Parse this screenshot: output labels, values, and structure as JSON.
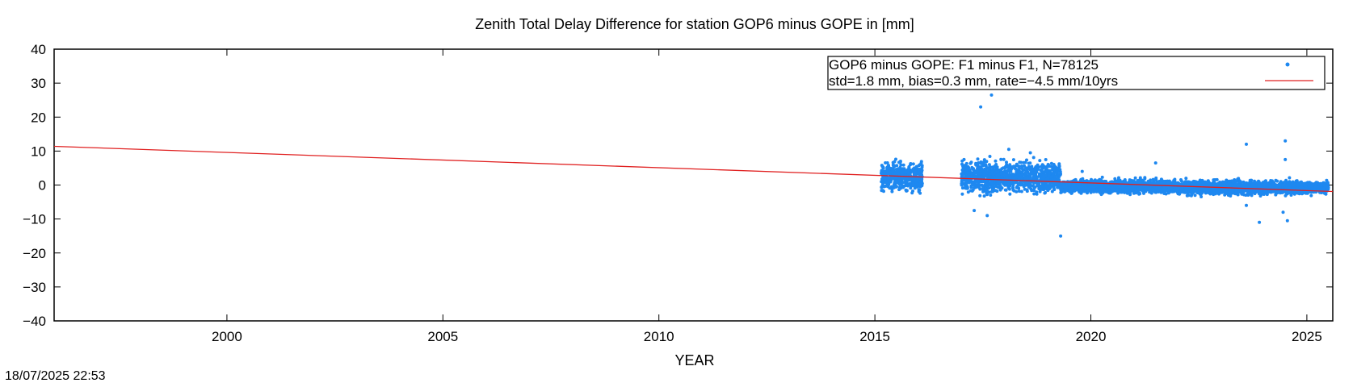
{
  "chart_data": {
    "type": "scatter",
    "title": "Zenith Total Delay Difference for station GOP6 minus GOPE in [mm]",
    "xlabel": "YEAR",
    "ylabel": "",
    "xlim": [
      1996.0,
      2025.6
    ],
    "ylim": [
      -40,
      40
    ],
    "xticks": [
      2000,
      2005,
      2010,
      2015,
      2020,
      2025
    ],
    "yticks": [
      -40,
      -30,
      -20,
      -10,
      0,
      10,
      20,
      30,
      40
    ],
    "grid": false,
    "legend_position": "top-right",
    "legend": [
      "GOP6 minus GOPE: F1 minus F1, N=78125",
      "std=1.8 mm, bias=0.3 mm, rate=−4.5 mm/10yrs"
    ],
    "series": [
      {
        "kind": "points",
        "color": "#1e88f0",
        "segments": [
          {
            "x_start": 2015.15,
            "x_end": 2016.1,
            "center": 2.5,
            "spread": 3.2,
            "max": 9,
            "min": -4.5
          },
          {
            "x_start": 2017.0,
            "x_end": 2019.3,
            "center": 2.3,
            "spread": 3.5,
            "max": 11,
            "min": -7
          },
          {
            "x_start": 2019.3,
            "x_end": 2022.0,
            "center": -0.4,
            "spread": 1.5,
            "max": 6,
            "min": -5
          },
          {
            "x_start": 2022.0,
            "x_end": 2025.5,
            "center": -0.8,
            "spread": 1.6,
            "max": 4,
            "min": -5
          }
        ],
        "outliers": [
          [
            2017.45,
            23
          ],
          [
            2017.7,
            26.5
          ],
          [
            2019.3,
            -15
          ],
          [
            2017.3,
            -7.5
          ],
          [
            2023.6,
            12
          ],
          [
            2024.5,
            13
          ],
          [
            2024.5,
            7.5
          ],
          [
            2024.45,
            -8
          ],
          [
            2024.55,
            -10.5
          ],
          [
            2023.9,
            -11
          ],
          [
            2023.6,
            -6
          ],
          [
            2018.1,
            10.5
          ],
          [
            2021.5,
            6.5
          ],
          [
            2019.8,
            4
          ],
          [
            2018.6,
            9.5
          ],
          [
            2017.6,
            -9
          ]
        ]
      },
      {
        "kind": "line",
        "color": "#e02020",
        "x": [
          1996.0,
          2025.6
        ],
        "y": [
          11.4,
          -1.9
        ]
      }
    ]
  },
  "footer": {
    "timestamp": "18/07/2025 22:53"
  }
}
